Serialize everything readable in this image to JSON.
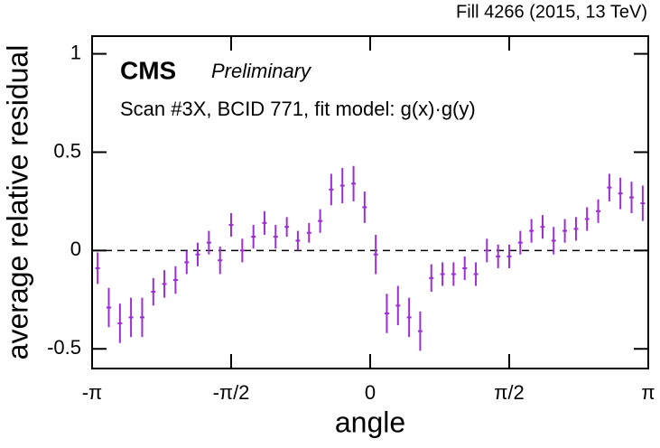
{
  "chart_data": {
    "type": "errorbar",
    "title": "CMS",
    "subtitle": "Preliminary",
    "annotation": "Scan #3X, BCID 771, fit model: g(x)·g(y)",
    "header": "Fill 4266 (2015, 13 TeV)",
    "xlabel": "angle",
    "ylabel": "average relative residual",
    "xlim": [
      -3.14159,
      3.14159
    ],
    "xticks": [
      {
        "value": -3.14159,
        "label": "-π"
      },
      {
        "value": -1.5708,
        "label": "-π/2"
      },
      0,
      {
        "value": 1.5708,
        "label": "π/2"
      },
      {
        "value": 3.14159,
        "label": "π"
      }
    ],
    "ylim": [
      -0.6,
      1.09
    ],
    "yticks": [
      -0.5,
      0,
      0.5,
      1
    ],
    "reference_line": 0,
    "color": "#9b2fd4",
    "x": [
      -3.079,
      -2.953,
      -2.827,
      -2.702,
      -2.576,
      -2.45,
      -2.325,
      -2.199,
      -2.073,
      -1.948,
      -1.822,
      -1.696,
      -1.571,
      -1.445,
      -1.319,
      -1.194,
      -1.068,
      -0.942,
      -0.817,
      -0.691,
      -0.565,
      -0.44,
      -0.314,
      -0.188,
      -0.063,
      0.063,
      0.188,
      0.314,
      0.44,
      0.565,
      0.691,
      0.817,
      0.942,
      1.068,
      1.194,
      1.319,
      1.445,
      1.571,
      1.696,
      1.822,
      1.948,
      2.073,
      2.199,
      2.325,
      2.45,
      2.576,
      2.702,
      2.827,
      2.953,
      3.079
    ],
    "values": [
      -0.09,
      -0.29,
      -0.37,
      -0.34,
      -0.34,
      -0.21,
      -0.17,
      -0.15,
      -0.06,
      -0.02,
      0.04,
      -0.05,
      0.13,
      0.0,
      0.07,
      0.14,
      0.07,
      0.12,
      0.05,
      0.09,
      0.15,
      0.31,
      0.33,
      0.34,
      0.22,
      -0.02,
      -0.32,
      -0.28,
      -0.34,
      -0.41,
      -0.14,
      -0.12,
      -0.12,
      -0.09,
      -0.12,
      0.0,
      -0.03,
      -0.03,
      0.04,
      0.1,
      0.12,
      0.05,
      0.1,
      0.11,
      0.16,
      0.2,
      0.32,
      0.29,
      0.27,
      0.24
    ],
    "errors": [
      0.08,
      0.1,
      0.1,
      0.1,
      0.1,
      0.07,
      0.07,
      0.07,
      0.06,
      0.06,
      0.06,
      0.07,
      0.06,
      0.06,
      0.06,
      0.06,
      0.06,
      0.05,
      0.05,
      0.05,
      0.06,
      0.08,
      0.09,
      0.09,
      0.08,
      0.1,
      0.1,
      0.1,
      0.1,
      0.1,
      0.07,
      0.06,
      0.06,
      0.06,
      0.06,
      0.06,
      0.06,
      0.06,
      0.06,
      0.06,
      0.06,
      0.07,
      0.06,
      0.06,
      0.06,
      0.06,
      0.07,
      0.08,
      0.08,
      0.09
    ]
  }
}
